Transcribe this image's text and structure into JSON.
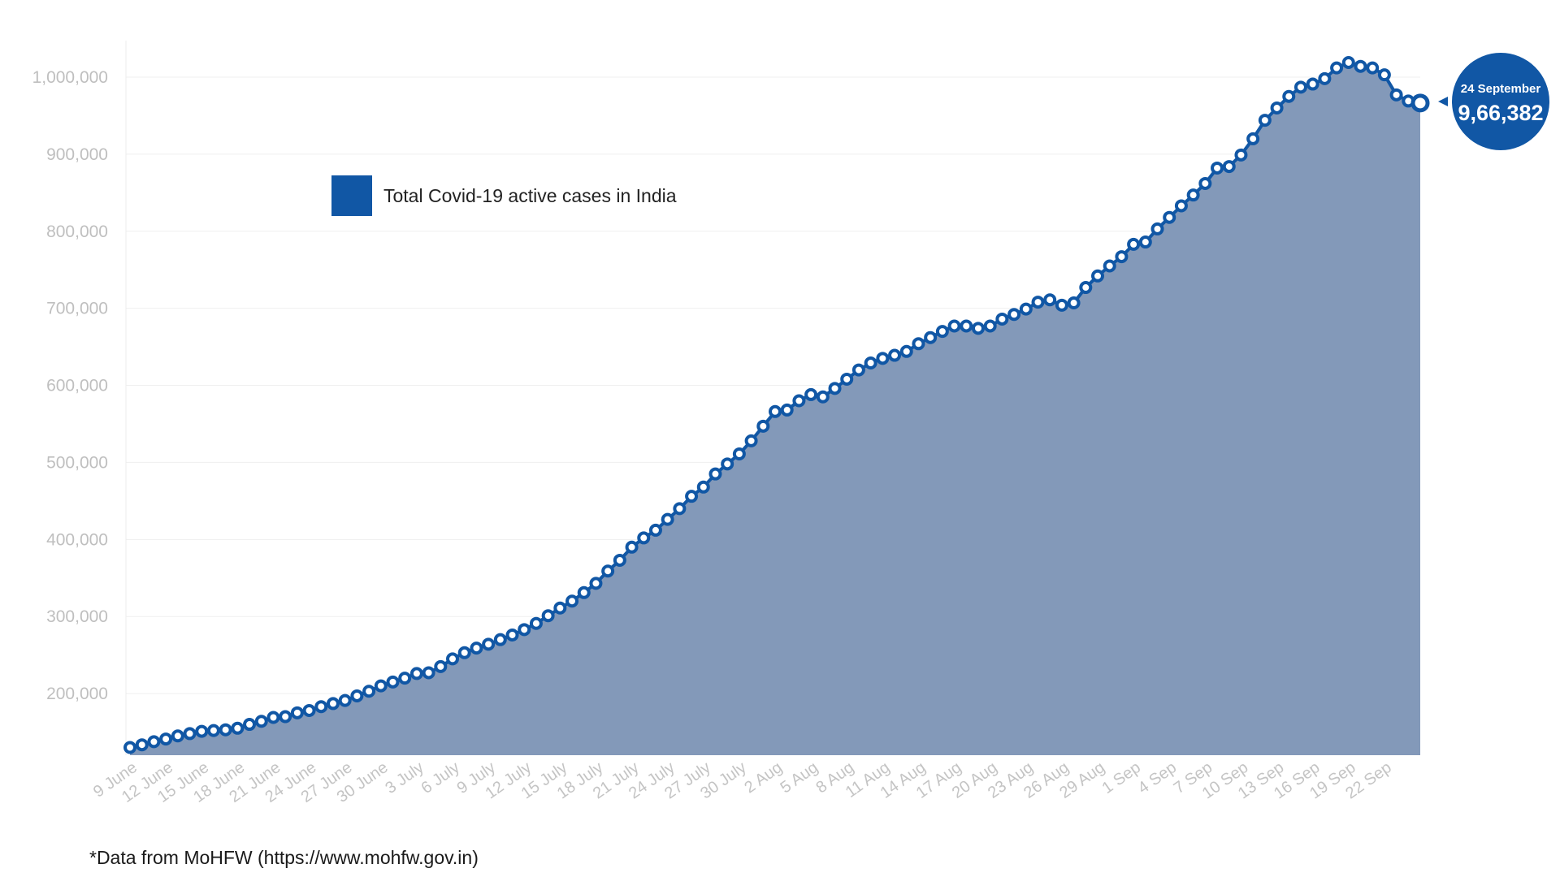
{
  "chart_data": {
    "type": "area",
    "title": "",
    "xlabel": "",
    "ylabel": "",
    "ylim": [
      120000,
      1050000
    ],
    "yticks": [
      200000,
      300000,
      400000,
      500000,
      600000,
      700000,
      800000,
      900000,
      1000000
    ],
    "ytick_labels": [
      "200,000",
      "300,000",
      "400,000",
      "500,000",
      "600,000",
      "700,000",
      "800,000",
      "900,000",
      "1,000,000"
    ],
    "xtick_labels": [
      "9 June",
      "12 June",
      "15 June",
      "18 June",
      "21 June",
      "24 June",
      "27 June",
      "30 June",
      "3 July",
      "6 July",
      "9 July",
      "12 July",
      "15 July",
      "18 July",
      "21 July",
      "24 July",
      "27 July",
      "30 July",
      "2 Aug",
      "5 Aug",
      "8 Aug",
      "11 Aug",
      "14 Aug",
      "17 Aug",
      "20 Aug",
      "23 Aug",
      "26 Aug",
      "29 Aug",
      "1 Sep",
      "4 Sep",
      "7 Sep",
      "10 Sep",
      "13 Sep",
      "16 Sep",
      "19 Sep",
      "22 Sep"
    ],
    "xtick_every": 3,
    "grid": true,
    "legend_position": "top-left",
    "series": [
      {
        "name": "Total Covid-19 active cases in India",
        "color": "#1157a5",
        "fill_color": "#8399b9",
        "values": [
          130000,
          133500,
          137500,
          141000,
          145000,
          148000,
          151000,
          152000,
          153000,
          155000,
          160000,
          164000,
          169000,
          170000,
          175000,
          178000,
          183000,
          187000,
          191000,
          197000,
          203000,
          210000,
          215000,
          220000,
          226000,
          227000,
          235000,
          245000,
          253000,
          259000,
          264000,
          270000,
          276000,
          283000,
          291000,
          301000,
          311000,
          320000,
          331000,
          343000,
          359000,
          373000,
          390000,
          402000,
          412000,
          426000,
          440000,
          456000,
          468000,
          485000,
          498000,
          511000,
          528000,
          547000,
          566000,
          568000,
          580000,
          588000,
          585000,
          596000,
          608000,
          620000,
          629000,
          635000,
          639000,
          644000,
          654000,
          662000,
          670000,
          677000,
          677000,
          674000,
          677000,
          686000,
          692000,
          699000,
          708000,
          711000,
          704000,
          707000,
          727000,
          742000,
          755000,
          767000,
          783000,
          786000,
          803000,
          818000,
          833000,
          847000,
          862000,
          882000,
          884000,
          899000,
          920000,
          944000,
          960000,
          975000,
          987000,
          991000,
          998000,
          1012000,
          1019000,
          1014000,
          1012000,
          1003000,
          977000,
          969000,
          966382
        ]
      }
    ],
    "callout": {
      "date": "24 September",
      "value": "9,66,382"
    }
  },
  "source_note": "*Data from MoHFW (https://www.mohfw.gov.in)"
}
